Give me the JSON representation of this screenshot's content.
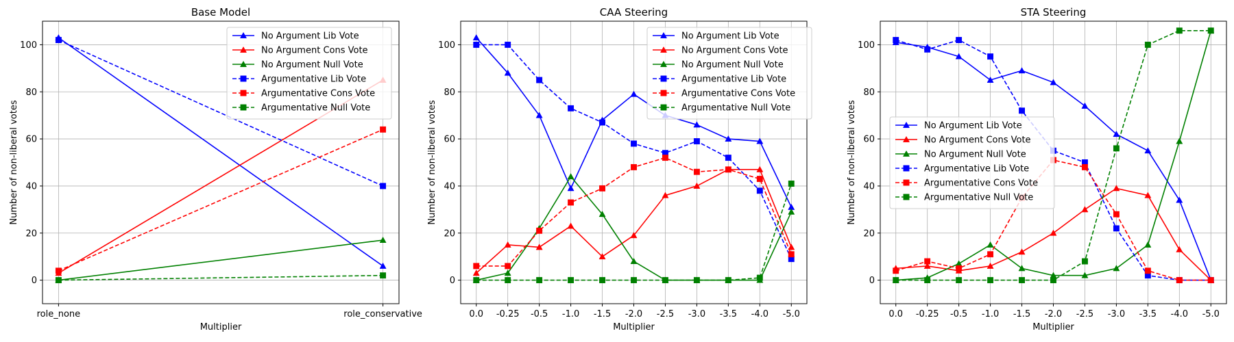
{
  "figure": {
    "series_styles": [
      {
        "name": "No Argument Lib Vote",
        "color": "#0000ff",
        "dash": "solid",
        "marker": "triangle"
      },
      {
        "name": "No Argument Cons Vote",
        "color": "#ff0000",
        "dash": "solid",
        "marker": "triangle"
      },
      {
        "name": "No Argument Null Vote",
        "color": "#008000",
        "dash": "solid",
        "marker": "triangle"
      },
      {
        "name": "Argumentative Lib Vote",
        "color": "#0000ff",
        "dash": "dashed",
        "marker": "square"
      },
      {
        "name": "Argumentative Cons Vote",
        "color": "#ff0000",
        "dash": "dashed",
        "marker": "square"
      },
      {
        "name": "Argumentative Null Vote",
        "color": "#008000",
        "dash": "dashed",
        "marker": "square"
      }
    ]
  },
  "chart_data": [
    {
      "type": "line",
      "title": "Base Model",
      "xlabel": "Multiplier",
      "ylabel": "Number of non-liberal votes",
      "categories": [
        "role_none",
        "role_conservative"
      ],
      "ylim": [
        -10,
        110
      ],
      "yticks": [
        0,
        20,
        40,
        60,
        80,
        100
      ],
      "grid": true,
      "legend_position": "top-right",
      "series": [
        {
          "name": "No Argument Lib Vote",
          "values": [
            103,
            6
          ]
        },
        {
          "name": "No Argument Cons Vote",
          "values": [
            3,
            85
          ]
        },
        {
          "name": "No Argument Null Vote",
          "values": [
            0,
            17
          ]
        },
        {
          "name": "Argumentative Lib Vote",
          "values": [
            102,
            40
          ]
        },
        {
          "name": "Argumentative Cons Vote",
          "values": [
            4,
            64
          ]
        },
        {
          "name": "Argumentative Null Vote",
          "values": [
            0,
            2
          ]
        }
      ]
    },
    {
      "type": "line",
      "title": "CAA Steering",
      "xlabel": "Multiplier",
      "ylabel": "Number of non-liberal votes",
      "categories": [
        "0.0",
        "-0.25",
        "-0.5",
        "-1.0",
        "-1.5",
        "-2.0",
        "-2.5",
        "-3.0",
        "-3.5",
        "-4.0",
        "-5.0"
      ],
      "ylim": [
        -10,
        110
      ],
      "yticks": [
        0,
        20,
        40,
        60,
        80,
        100
      ],
      "grid": true,
      "legend_position": "top-right",
      "series": [
        {
          "name": "No Argument Lib Vote",
          "values": [
            103,
            88,
            70,
            39,
            68,
            79,
            70,
            66,
            60,
            59,
            31
          ]
        },
        {
          "name": "No Argument Cons Vote",
          "values": [
            3,
            15,
            14,
            23,
            10,
            19,
            36,
            40,
            47,
            47,
            14
          ]
        },
        {
          "name": "No Argument Null Vote",
          "values": [
            0,
            3,
            22,
            44,
            28,
            8,
            0,
            0,
            0,
            0,
            29
          ]
        },
        {
          "name": "Argumentative Lib Vote",
          "values": [
            100,
            100,
            85,
            73,
            67,
            58,
            54,
            59,
            52,
            38,
            9
          ]
        },
        {
          "name": "Argumentative Cons Vote",
          "values": [
            6,
            6,
            21,
            33,
            39,
            48,
            52,
            46,
            47,
            43,
            11
          ]
        },
        {
          "name": "Argumentative Null Vote",
          "values": [
            0,
            0,
            0,
            0,
            0,
            0,
            0,
            0,
            0,
            1,
            41
          ]
        }
      ]
    },
    {
      "type": "line",
      "title": "STA Steering",
      "xlabel": "Multiplier",
      "ylabel": "Number of non-liberal votes",
      "categories": [
        "0.0",
        "-0.25",
        "-0.5",
        "-1.0",
        "-1.5",
        "-2.0",
        "-2.5",
        "-3.0",
        "-3.5",
        "-4.0",
        "-5.0"
      ],
      "ylim": [
        -10,
        110
      ],
      "yticks": [
        0,
        20,
        40,
        60,
        80,
        100
      ],
      "grid": true,
      "legend_position": "center-left",
      "series": [
        {
          "name": "No Argument Lib Vote",
          "values": [
            101,
            99,
            95,
            85,
            89,
            84,
            74,
            62,
            55,
            34,
            0
          ]
        },
        {
          "name": "No Argument Cons Vote",
          "values": [
            5,
            6,
            4,
            6,
            12,
            20,
            30,
            39,
            36,
            13,
            0
          ]
        },
        {
          "name": "No Argument Null Vote",
          "values": [
            0,
            1,
            7,
            15,
            5,
            2,
            2,
            5,
            15,
            59,
            106
          ]
        },
        {
          "name": "Argumentative Lib Vote",
          "values": [
            102,
            98,
            102,
            95,
            72,
            55,
            50,
            22,
            2,
            0,
            0
          ]
        },
        {
          "name": "Argumentative Cons Vote",
          "values": [
            4,
            8,
            5,
            11,
            35,
            51,
            48,
            28,
            4,
            0,
            0
          ]
        },
        {
          "name": "Argumentative Null Vote",
          "values": [
            0,
            0,
            0,
            0,
            0,
            0,
            8,
            56,
            100,
            106,
            106
          ]
        }
      ]
    }
  ]
}
